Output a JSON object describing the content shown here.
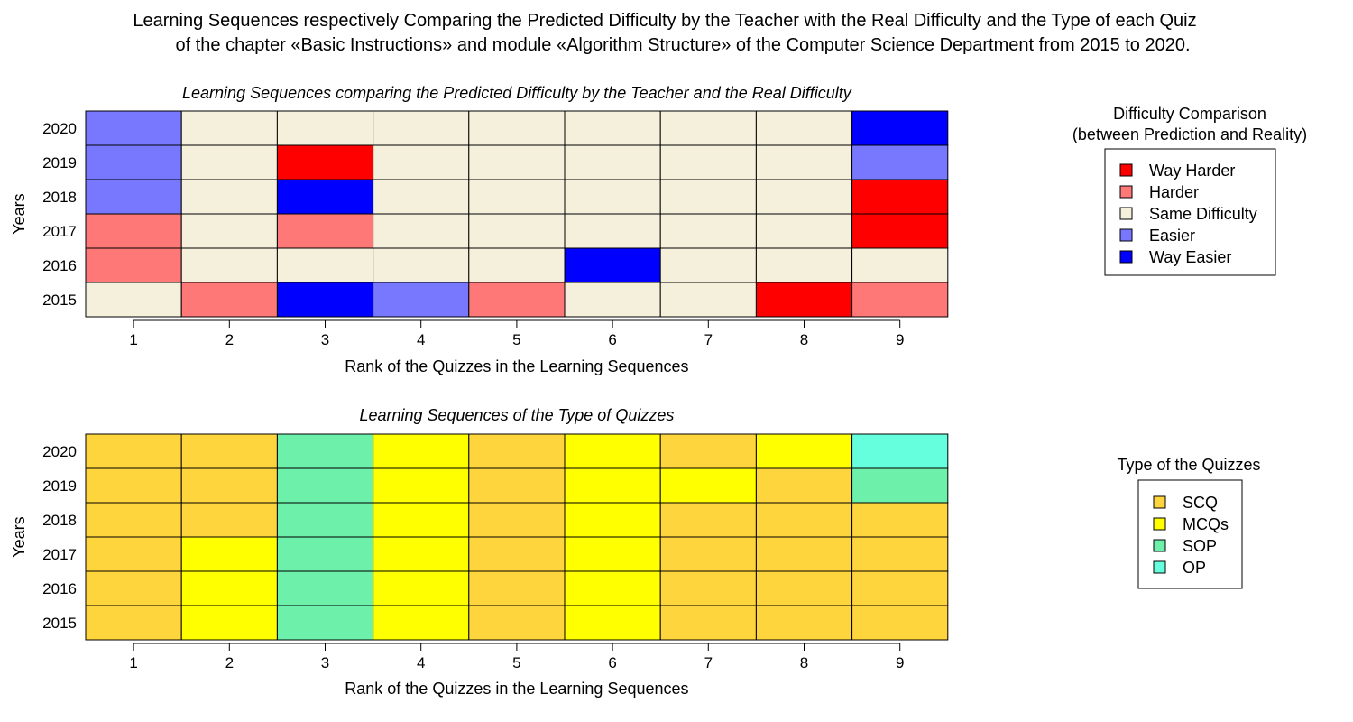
{
  "title_line1": "Learning Sequences respectively Comparing the Predicted Difficulty by the Teacher with the Real Difficulty and the Type of each Quiz",
  "title_line2": "of the chapter «Basic Instructions» and module «Algorithm Structure» of the Computer Science Department from 2015 to 2020.",
  "chart_data": [
    {
      "type": "heatmap",
      "title": "Learning Sequences comparing the Predicted Difficulty by the Teacher and the Real Difficulty",
      "xlabel": "Rank of the Quizzes in the Learning Sequences",
      "ylabel": "Years",
      "x": [
        "1",
        "2",
        "3",
        "4",
        "5",
        "6",
        "7",
        "8",
        "9"
      ],
      "y": [
        "2020",
        "2019",
        "2018",
        "2017",
        "2016",
        "2015"
      ],
      "legend_title_line1": "Difficulty Comparison",
      "legend_title_line2": "(between Prediction and Reality)",
      "legend": [
        {
          "name": "Way Harder",
          "color": "#ff0000"
        },
        {
          "name": "Harder",
          "color": "#ff7878"
        },
        {
          "name": "Same Difficulty",
          "color": "#f5f0dc"
        },
        {
          "name": "Easier",
          "color": "#7878ff"
        },
        {
          "name": "Way Easier",
          "color": "#0000ff"
        }
      ],
      "values": [
        [
          "Easier",
          "Same Difficulty",
          "Same Difficulty",
          "Same Difficulty",
          "Same Difficulty",
          "Same Difficulty",
          "Same Difficulty",
          "Same Difficulty",
          "Way Easier"
        ],
        [
          "Easier",
          "Same Difficulty",
          "Way Harder",
          "Same Difficulty",
          "Same Difficulty",
          "Same Difficulty",
          "Same Difficulty",
          "Same Difficulty",
          "Easier"
        ],
        [
          "Easier",
          "Same Difficulty",
          "Way Easier",
          "Same Difficulty",
          "Same Difficulty",
          "Same Difficulty",
          "Same Difficulty",
          "Same Difficulty",
          "Way Harder"
        ],
        [
          "Harder",
          "Same Difficulty",
          "Harder",
          "Same Difficulty",
          "Same Difficulty",
          "Same Difficulty",
          "Same Difficulty",
          "Same Difficulty",
          "Way Harder"
        ],
        [
          "Harder",
          "Same Difficulty",
          "Same Difficulty",
          "Same Difficulty",
          "Same Difficulty",
          "Way Easier",
          "Same Difficulty",
          "Same Difficulty",
          "Same Difficulty"
        ],
        [
          "Same Difficulty",
          "Harder",
          "Way Easier",
          "Easier",
          "Harder",
          "Same Difficulty",
          "Same Difficulty",
          "Way Harder",
          "Harder"
        ]
      ]
    },
    {
      "type": "heatmap",
      "title": "Learning Sequences of the Type of Quizzes",
      "xlabel": "Rank of the Quizzes in the Learning Sequences",
      "ylabel": "Years",
      "x": [
        "1",
        "2",
        "3",
        "4",
        "5",
        "6",
        "7",
        "8",
        "9"
      ],
      "y": [
        "2020",
        "2019",
        "2018",
        "2017",
        "2016",
        "2015"
      ],
      "legend_title_line1": "Type of the Quizzes",
      "legend_title_line2": "",
      "legend": [
        {
          "name": "SCQ",
          "color": "#ffd53d"
        },
        {
          "name": "MCQs",
          "color": "#ffff00"
        },
        {
          "name": "SOP",
          "color": "#6cf0aa"
        },
        {
          "name": "OP",
          "color": "#66ffdd"
        }
      ],
      "values": [
        [
          "SCQ",
          "SCQ",
          "SOP",
          "MCQs",
          "SCQ",
          "MCQs",
          "SCQ",
          "MCQs",
          "OP"
        ],
        [
          "SCQ",
          "SCQ",
          "SOP",
          "MCQs",
          "SCQ",
          "MCQs",
          "MCQs",
          "SCQ",
          "SOP"
        ],
        [
          "SCQ",
          "SCQ",
          "SOP",
          "MCQs",
          "SCQ",
          "MCQs",
          "SCQ",
          "SCQ",
          "SCQ"
        ],
        [
          "SCQ",
          "MCQs",
          "SOP",
          "MCQs",
          "SCQ",
          "MCQs",
          "SCQ",
          "SCQ",
          "SCQ"
        ],
        [
          "SCQ",
          "MCQs",
          "SOP",
          "MCQs",
          "SCQ",
          "MCQs",
          "SCQ",
          "SCQ",
          "SCQ"
        ],
        [
          "SCQ",
          "MCQs",
          "SOP",
          "MCQs",
          "SCQ",
          "MCQs",
          "SCQ",
          "SCQ",
          "SCQ"
        ]
      ]
    }
  ]
}
